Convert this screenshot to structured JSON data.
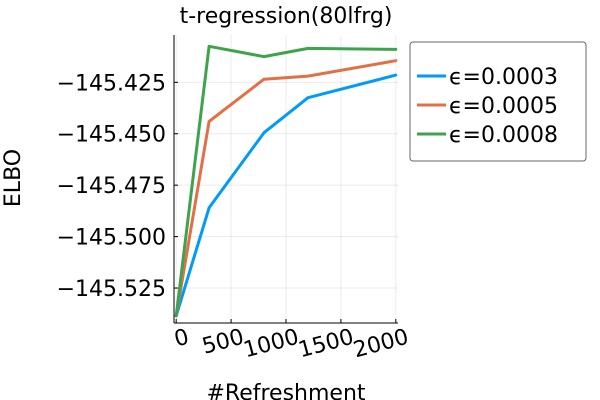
{
  "chart_data": {
    "type": "line",
    "title": "t-regression(80lfrg)",
    "xlabel": "#Refreshment",
    "ylabel": "ELBO",
    "xlim": [
      -20,
      2020
    ],
    "ylim": [
      -145.542,
      -145.402
    ],
    "xticks": [
      0,
      500,
      1000,
      1500,
      2000
    ],
    "xtick_labels": [
      "0",
      "500",
      "1000",
      "1500",
      "2000"
    ],
    "yticks": [
      -145.525,
      -145.5,
      -145.475,
      -145.45,
      -145.425
    ],
    "ytick_labels": [
      "−145.525",
      "−145.500",
      "−145.475",
      "−145.450",
      "−145.425"
    ],
    "grid": true,
    "legend_position": "outside-right-top",
    "x": [
      0,
      300,
      800,
      1200,
      2000
    ],
    "series": [
      {
        "name": "ϵ=0.0003",
        "color": "#009af9",
        "values": [
          -145.5385,
          -145.486,
          -145.4495,
          -145.4325,
          -145.4215
        ]
      },
      {
        "name": "ϵ=0.0005",
        "color": "#e26f46",
        "values": [
          -145.5385,
          -145.444,
          -145.4235,
          -145.422,
          -145.4145
        ]
      },
      {
        "name": "ϵ=0.0008",
        "color": "#3da44d",
        "values": [
          -145.5385,
          -145.4075,
          -145.4125,
          -145.4085,
          -145.409
        ]
      }
    ]
  }
}
